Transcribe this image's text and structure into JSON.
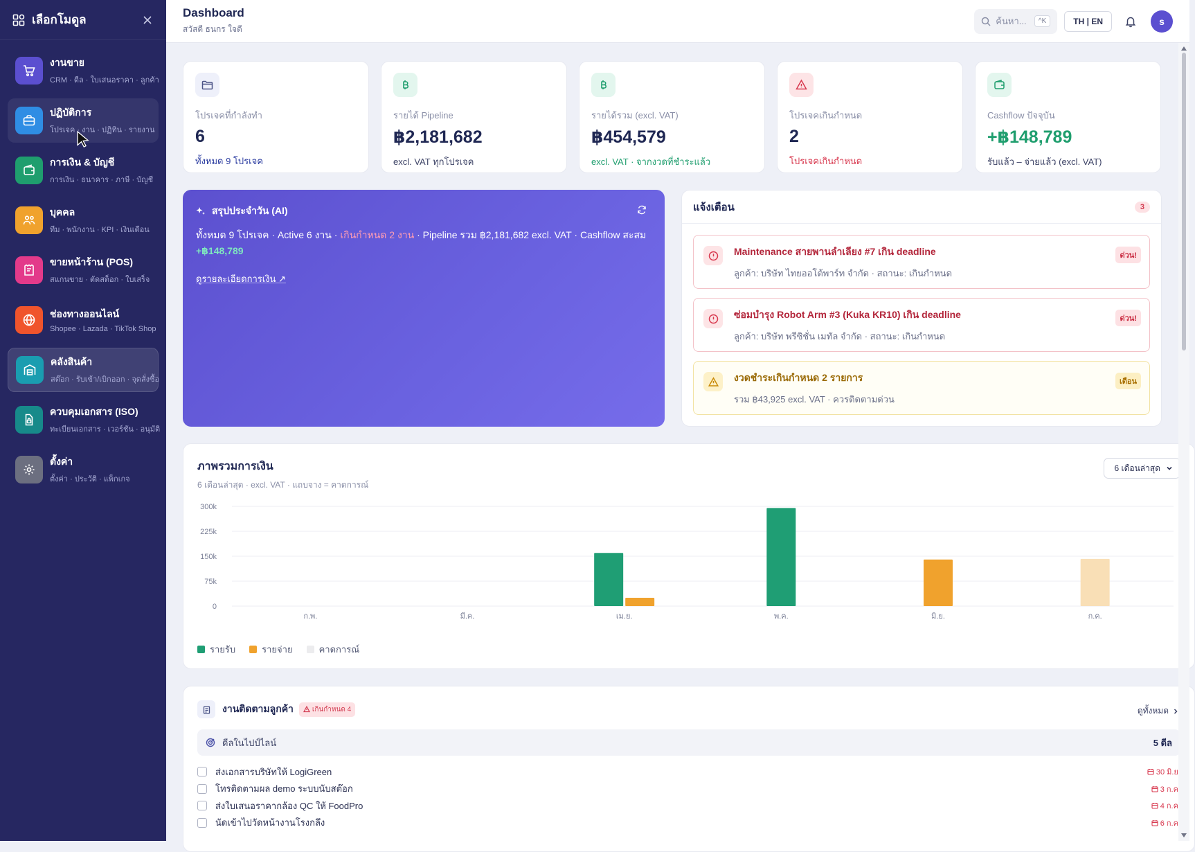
{
  "sidebar": {
    "title": "เลือกโมดูล",
    "items": [
      {
        "label": "งานขาย",
        "sub": "CRM · ดีล · ใบเสนอราคา · ลูกค้า",
        "color": "#5b4fd0",
        "icon": "cart-icon"
      },
      {
        "label": "ปฏิบัติการ",
        "sub": "โปรเจค · งาน · ปฏิทิน · รายงาน",
        "color": "#2f8de4",
        "icon": "briefcase-icon"
      },
      {
        "label": "การเงิน & บัญชี",
        "sub": "การเงิน · ธนาคาร · ภาษี · บัญชี",
        "color": "#1f9e6e",
        "icon": "wallet-icon"
      },
      {
        "label": "บุคคล",
        "sub": "ทีม · พนักงาน · KPI · เงินเดือน",
        "color": "#f0a22d",
        "icon": "people-icon"
      },
      {
        "label": "ขายหน้าร้าน (POS)",
        "sub": "สแกนขาย · ตัดสต็อก · ใบเสร็จ",
        "color": "#e33a8a",
        "icon": "pos-icon"
      },
      {
        "label": "ช่องทางออนไลน์",
        "sub": "Shopee · Lazada · TikTok Shop",
        "color": "#f0542c",
        "icon": "globe-icon"
      },
      {
        "label": "คลังสินค้า",
        "sub": "สต๊อก · รับเข้า/เบิกออก · จุดสั่งซื้อ",
        "color": "#1a9db0",
        "icon": "warehouse-icon"
      },
      {
        "label": "ควบคุมเอกสาร (ISO)",
        "sub": "ทะเบียนเอกสาร · เวอร์ชัน · อนุมัติ",
        "color": "#178a8a",
        "icon": "document-lock-icon"
      },
      {
        "label": "ตั้งค่า",
        "sub": "ตั้งค่า · ประวัติ · แพ็กเกจ",
        "color": "#6c6f80",
        "icon": "gear-icon"
      }
    ]
  },
  "topbar": {
    "title": "Dashboard",
    "subtitle": "สวัสดี ธนกร ใจดี",
    "search_placeholder": "ค้นหา...",
    "shortcut": "^K",
    "lang": "TH | EN",
    "avatar": "s"
  },
  "kpis": [
    {
      "label": "โปรเจคที่กำลังทำ",
      "value": "6",
      "note": "ทั้งหมด 9 โปรเจค",
      "icon": "folder-icon",
      "icon_bg": "#eef0fa",
      "icon_color": "#4b5386",
      "value_color": "#1f2753",
      "note_color": "#2b3ca0"
    },
    {
      "label": "รายได้ Pipeline",
      "value": "฿2,181,682",
      "note": "excl. VAT ทุกโปรเจค",
      "icon": "baht-icon",
      "icon_bg": "#e3f6ee",
      "icon_color": "#1f9e6e",
      "value_color": "#1f2753",
      "note_color": "#3d4366"
    },
    {
      "label": "รายได้รวม (excl. VAT)",
      "value": "฿454,579",
      "note": "excl. VAT · จากงวดที่ชำระแล้ว",
      "icon": "baht-icon",
      "icon_bg": "#e3f6ee",
      "icon_color": "#1f9e6e",
      "value_color": "#1f2753",
      "note_color": "#1f9e6e"
    },
    {
      "label": "โปรเจคเกินกำหนด",
      "value": "2",
      "note": "โปรเจคเกินกำหนด",
      "icon": "warning-icon",
      "icon_bg": "#fde4e6",
      "icon_color": "#d8394f",
      "value_color": "#1f2753",
      "note_color": "#d8394f"
    },
    {
      "label": "Cashflow ปัจจุบัน",
      "value": "+฿148,789",
      "note": "รับแล้ว – จ่ายแล้ว (excl. VAT)",
      "icon": "wallet-icon",
      "icon_bg": "#e3f6ee",
      "icon_color": "#1f9e6e",
      "value_color": "#1f9e6e",
      "note_color": "#3d4366"
    }
  ],
  "ai_summary": {
    "title": "สรุปประจำวัน (AI)",
    "text_1": "ทั้งหมด 9 โปรเจค · Active 6 งาน · ",
    "text_over": "เกินกำหนด 2 งาน",
    "text_2": " · Pipeline รวม ฿2,181,682 excl. VAT · Cashflow สะสม ",
    "text_cash": "+฿148,789",
    "link": "ดูรายละเอียดการเงิน ↗"
  },
  "alerts": {
    "title": "แจ้งเตือน",
    "count": "3",
    "items": [
      {
        "title": "Maintenance สายพานลำเลียง #7 เกิน deadline",
        "sub": "ลูกค้า: บริษัท ไทยออโต้พาร์ท จำกัด · สถานะ: เกินกำหนด",
        "badge": "ด่วน!",
        "kind": "red"
      },
      {
        "title": "ซ่อมบำรุง Robot Arm #3 (Kuka KR10) เกิน deadline",
        "sub": "ลูกค้า: บริษัท พรีซิชั่น เมทัล จำกัด · สถานะ: เกินกำหนด",
        "badge": "ด่วน!",
        "kind": "red"
      },
      {
        "title": "งวดชำระเกินกำหนด 2 รายการ",
        "sub": "รวม ฿43,925 excl. VAT · ควรติดตามด่วน",
        "badge": "เตือน",
        "kind": "yellow"
      }
    ]
  },
  "finance": {
    "title": "ภาพรวมการเงิน",
    "subtitle": "6 เดือนล่าสุด · excl. VAT · แถบจาง = คาดการณ์",
    "range": "6 เดือนล่าสุด",
    "legend": {
      "income": "รายรับ",
      "expense": "รายจ่าย",
      "forecast": "คาดการณ์"
    }
  },
  "chart_data": {
    "type": "bar",
    "categories": [
      "ก.พ.",
      "มี.ค.",
      "เม.ย.",
      "พ.ค.",
      "มิ.ย.",
      "ก.ค."
    ],
    "series": [
      {
        "name": "รายรับ",
        "values": [
          0,
          0,
          160000,
          295000,
          0,
          0
        ],
        "color": "#1f9e74"
      },
      {
        "name": "รายจ่าย",
        "values": [
          0,
          0,
          25000,
          0,
          140000,
          0
        ],
        "color": "#f0a22d"
      },
      {
        "name": "คาดการณ์",
        "values": [
          0,
          0,
          0,
          0,
          0,
          142000
        ],
        "color": "#f9dfb6"
      }
    ],
    "yticks": [
      "300k",
      "225k",
      "150k",
      "75k",
      "0"
    ],
    "ylim": [
      0,
      300000
    ],
    "grid": true,
    "legend_position": "bottom-left"
  },
  "tasks": {
    "title": "งานติดตามลูกค้า",
    "overdue_badge": "เกินกำหนด 4",
    "view_all": "ดูทั้งหมด",
    "deals_label": "ดีลในไปป์ไลน์",
    "deals_count": "5 ดีล",
    "items": [
      {
        "label": "ส่งเอกสารบริษัทให้ LogiGreen",
        "date": "30 มิ.ย."
      },
      {
        "label": "โทรติดตามผล demo ระบบนับสต๊อก",
        "date": "3 ก.ค."
      },
      {
        "label": "ส่งใบเสนอราคากล้อง QC ให้ FoodPro",
        "date": "4 ก.ค."
      },
      {
        "label": "นัดเข้าไปวัดหน้างานโรงกลึง",
        "date": "6 ก.ค."
      }
    ]
  }
}
